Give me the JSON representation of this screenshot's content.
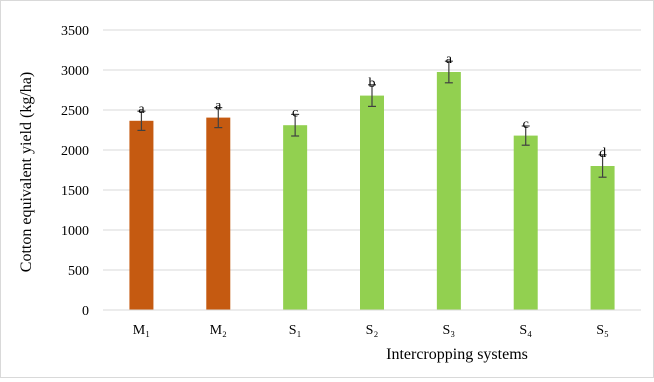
{
  "chart_data": {
    "type": "bar",
    "title": "",
    "xlabel": "Intercropping systems",
    "ylabel": "Cotton equivalent yield (kg/ha)",
    "ylim": [
      0,
      3500
    ],
    "yticks": [
      0,
      500,
      1000,
      1500,
      2000,
      2500,
      3000,
      3500
    ],
    "grid": true,
    "legend": "none",
    "categories": [
      "M₁",
      "M₂",
      "S₁",
      "S₂",
      "S₃",
      "S₄",
      "S₅"
    ],
    "values": [
      2365,
      2405,
      2310,
      2680,
      2975,
      2180,
      1800
    ],
    "error": [
      120,
      125,
      135,
      135,
      135,
      120,
      140
    ],
    "significance_letters": [
      "a",
      "a",
      "c",
      "b",
      "a",
      "c",
      "d"
    ],
    "bar_colors": [
      "#c55a11",
      "#c55a11",
      "#92d050",
      "#92d050",
      "#92d050",
      "#92d050",
      "#92d050"
    ],
    "gridline_color": "#d9d9d9",
    "errorbar_color": "#404040"
  }
}
